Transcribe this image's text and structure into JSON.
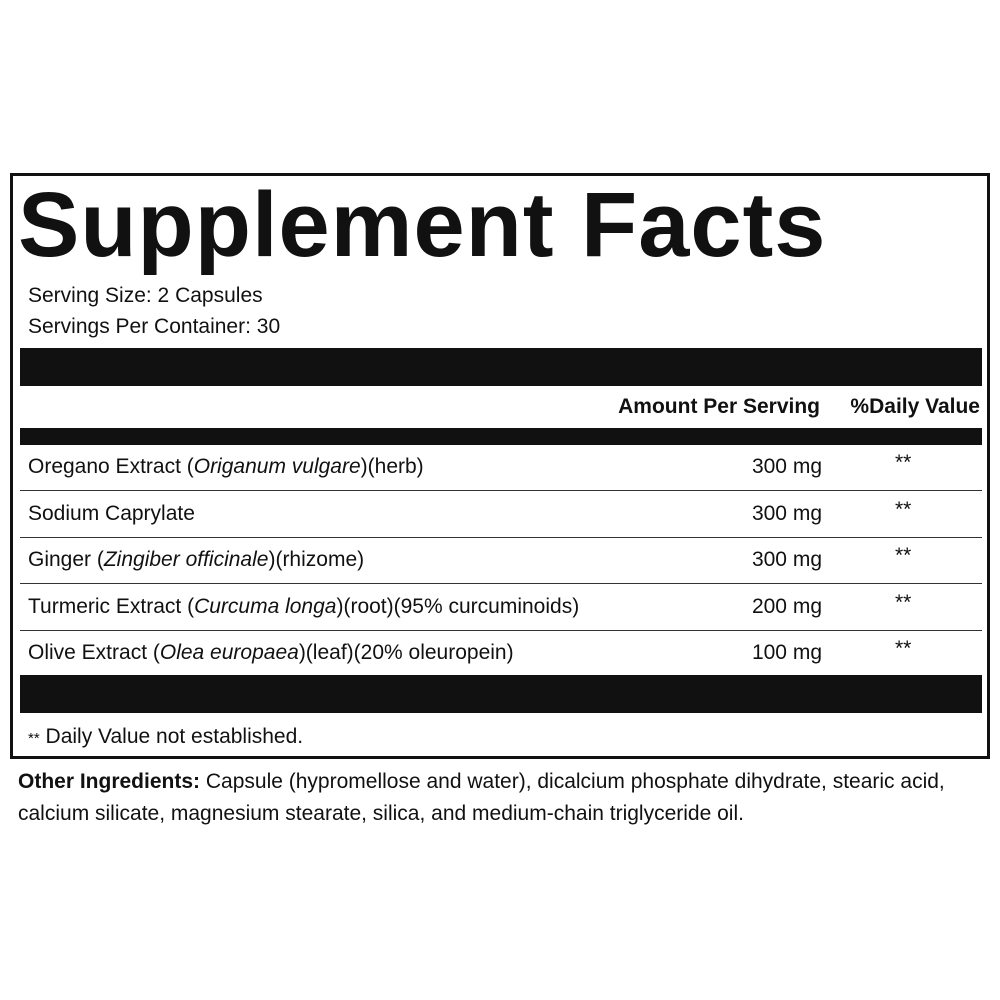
{
  "header": {
    "title": "Supplement Facts",
    "serving_size": "Serving Size: 2 Capsules",
    "servings_per_container": "Servings Per Container: 30"
  },
  "table": {
    "columns": [
      "Amount Per Serving",
      "%Daily Value"
    ],
    "rows": [
      {
        "name": "Oregano Extract (",
        "latin": "Origanum vulgare",
        "rest": ")(herb)",
        "amount": "300 mg",
        "dv": "**"
      },
      {
        "name": "Sodium Caprylate",
        "amount": "300 mg",
        "dv": "**"
      },
      {
        "name": "Ginger (",
        "latin": "Zingiber officinale",
        "rest": ")(rhizome)",
        "amount": "300 mg",
        "dv": "**"
      },
      {
        "name": "Turmeric Extract (",
        "latin": "Curcuma longa",
        "rest": ")(root)(95% curcuminoids)",
        "amount": "200 mg",
        "dv": "**"
      },
      {
        "name": "Olive Extract (",
        "latin": "Olea europaea",
        "rest": ")(leaf)(20% oleuropein)",
        "amount": "100 mg",
        "dv": "**"
      }
    ],
    "footnote_mark": "**",
    "footnote": "Daily Value not established."
  },
  "other_ingredients": {
    "label": "Other Ingredients:",
    "text": "Capsule (hypromellose and water), dicalcium phosphate dihydrate, stearic acid, calcium silicate, magnesium stearate, silica, and medium-chain triglyceride oil."
  }
}
